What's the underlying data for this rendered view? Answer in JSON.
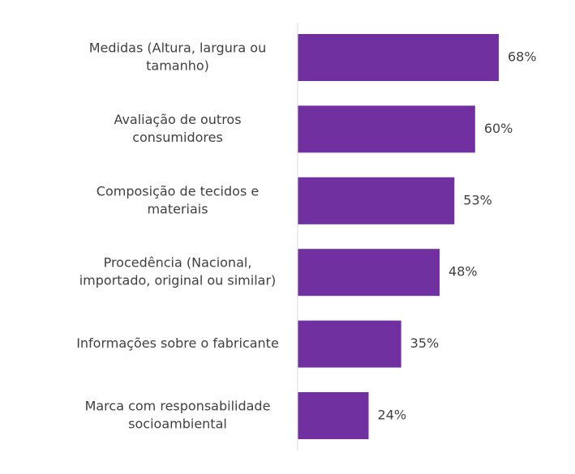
{
  "chart_data": {
    "type": "bar",
    "orientation": "horizontal",
    "categories": [
      [
        "Medidas (Altura, largura ou",
        "tamanho)"
      ],
      [
        "Avaliação de outros",
        "consumidores"
      ],
      [
        "Composição de tecidos e",
        "materiais"
      ],
      [
        "Procedência (Nacional,",
        "importado, original ou similar)"
      ],
      [
        "Informações sobre o fabricante"
      ],
      [
        "Marca com responsabilidade",
        "socioambiental"
      ]
    ],
    "values": [
      68,
      60,
      53,
      48,
      35,
      24
    ],
    "value_labels": [
      "68%",
      "60%",
      "53%",
      "48%",
      "35%",
      "24%"
    ],
    "title": "",
    "xlabel": "",
    "ylabel": "",
    "grid": false,
    "colors": {
      "bar": "#7030A0",
      "axis": "#D9D9D9",
      "text": "#404040"
    }
  }
}
